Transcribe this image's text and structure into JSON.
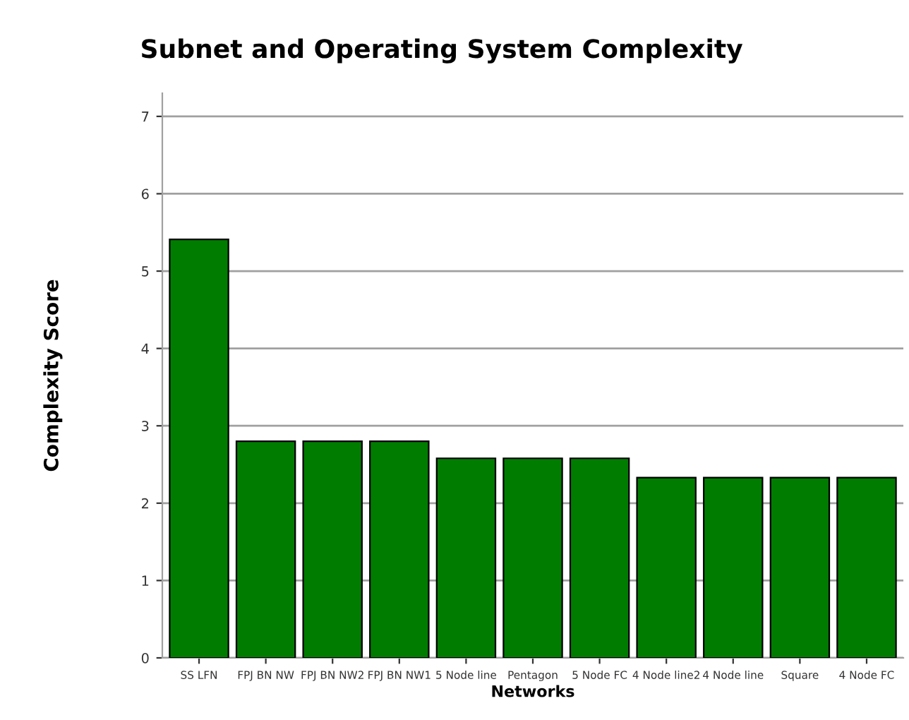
{
  "chart_data": {
    "type": "bar",
    "title": "Subnet and Operating System Complexity",
    "xlabel": "Networks",
    "ylabel": "Complexity Score",
    "categories": [
      "SS LFN",
      "FPJ BN NW",
      "FPJ BN NW2",
      "FPJ BN NW1",
      "5 Node line",
      "Pentagon",
      "5 Node FC",
      "4 Node line2",
      "4 Node line",
      "Square",
      "4 Node FC"
    ],
    "values": [
      5.41,
      2.8,
      2.8,
      2.8,
      2.58,
      2.58,
      2.58,
      2.33,
      2.33,
      2.33,
      2.33
    ],
    "color": "#007c00",
    "ylim": [
      0,
      7.3
    ],
    "yticks": [
      0,
      1,
      2,
      3,
      4,
      5,
      6,
      7
    ],
    "grid": "y"
  }
}
